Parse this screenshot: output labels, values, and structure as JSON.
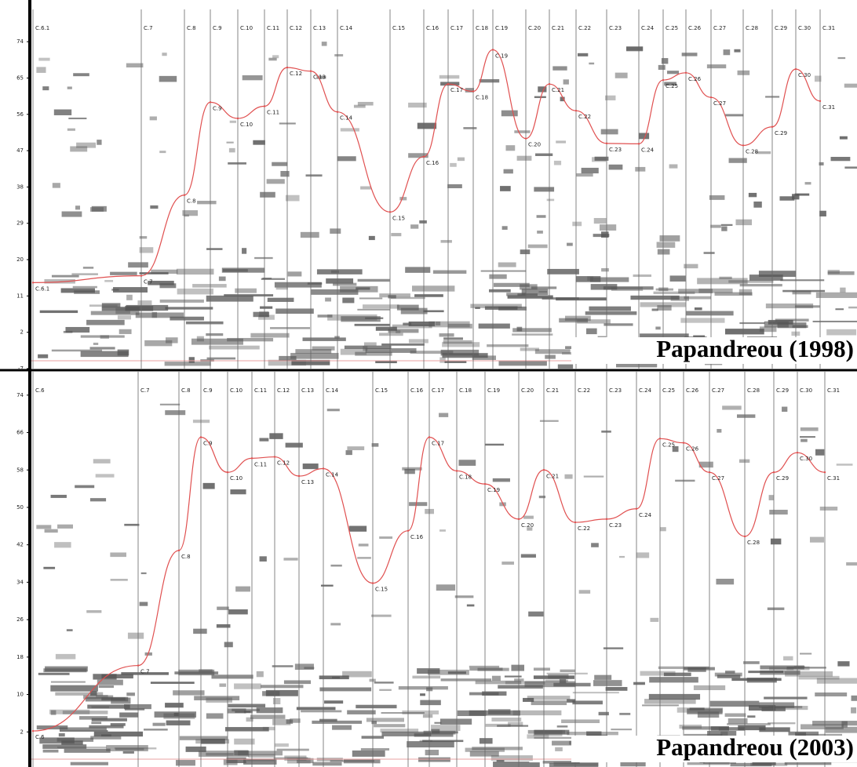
{
  "chart_data": [
    {
      "type": "line",
      "title": "Papandreou (1998)",
      "color": "#e05050",
      "categories": [
        "C.6.1",
        "C.7",
        "C.8",
        "C.9",
        "C.10",
        "C.11",
        "C.12",
        "C.13",
        "C.14",
        "C.15",
        "C.16",
        "C.17",
        "C.18",
        "C.19",
        "C.20",
        "C.21",
        "C.22",
        "C.23",
        "C.24",
        "C.25",
        "C.26",
        "C.27",
        "C.28",
        "C.29",
        "C.30",
        "C.31"
      ],
      "x": [
        42,
        180,
        235,
        268,
        303,
        337,
        366,
        396,
        430,
        497,
        540,
        571,
        603,
        628,
        670,
        700,
        734,
        773,
        814,
        845,
        874,
        906,
        947,
        984,
        1014,
        1045
      ],
      "values": [
        14.3,
        16,
        36,
        59,
        55,
        58,
        67.6,
        66.7,
        56.6,
        31.8,
        45.5,
        63.5,
        61.7,
        72,
        50,
        63.5,
        56.9,
        48.8,
        48.7,
        64.5,
        66.3,
        60.2,
        48.3,
        52.9,
        67.2,
        59.3
      ],
      "xlim": [
        0,
        1092
      ],
      "ylim": [
        -7,
        82
      ],
      "yticks": [
        -7,
        2,
        11,
        20,
        29,
        38,
        47,
        56,
        65,
        74
      ]
    },
    {
      "type": "line",
      "title": "Papandreou (2003)",
      "color": "#e05050",
      "categories": [
        "C.6",
        "C.7",
        "C.8",
        "C.9",
        "C.10",
        "C.11",
        "C.12",
        "C.13",
        "C.14",
        "C.15",
        "C.16",
        "C.17",
        "C.18",
        "C.19",
        "C.20",
        "C.21",
        "C.22",
        "C.23",
        "C.24",
        "C.25",
        "C.26",
        "C.27",
        "C.28",
        "C.29",
        "C.30",
        "C.31"
      ],
      "x": [
        42,
        176,
        228,
        256,
        290,
        321,
        350,
        381,
        412,
        475,
        520,
        547,
        582,
        618,
        661,
        693,
        733,
        773,
        811,
        841,
        871,
        904,
        949,
        986,
        1016,
        1051
      ],
      "values": [
        2.2,
        16.2,
        40.8,
        65,
        57.5,
        60.5,
        60.8,
        56.7,
        58.3,
        33.8,
        45,
        65,
        57.8,
        55,
        47.5,
        58,
        46.8,
        47.5,
        49.7,
        64.7,
        63.8,
        57.5,
        43.8,
        57.5,
        61.7,
        57.5
      ],
      "xlim": [
        0,
        1092
      ],
      "ylim": [
        -5.5,
        79
      ],
      "yticks": [
        2,
        10,
        18,
        26,
        34,
        42,
        50,
        58,
        66,
        74
      ]
    }
  ]
}
